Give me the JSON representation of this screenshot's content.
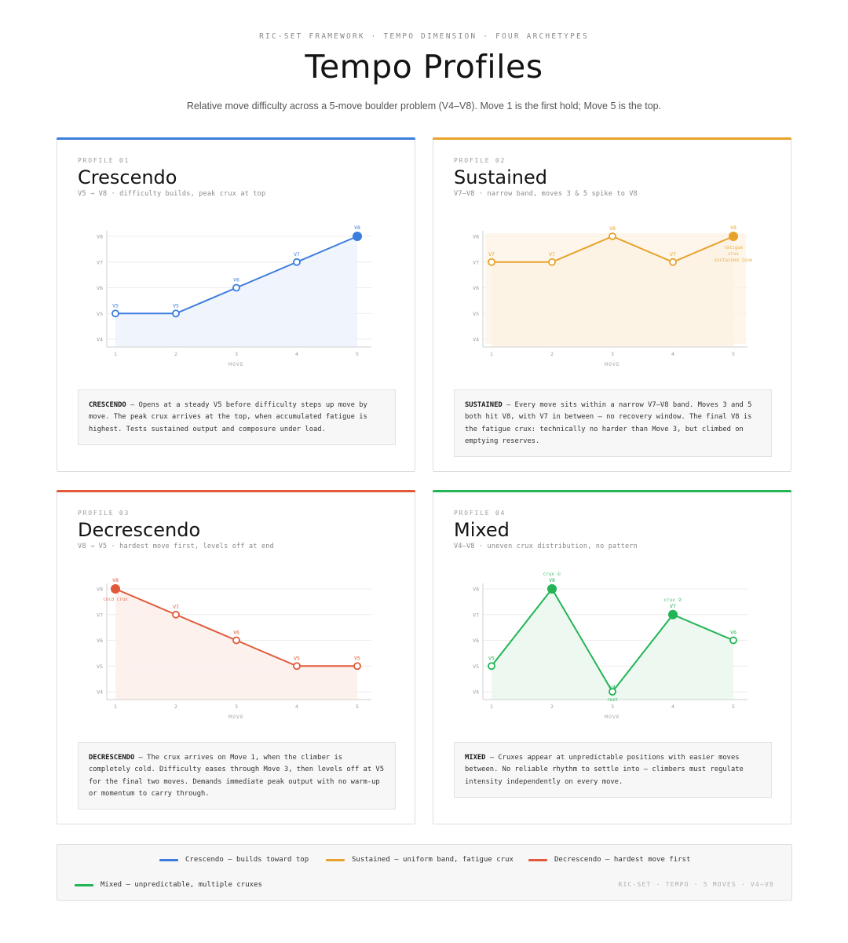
{
  "header": {
    "kicker": "RIC-SET FRAMEWORK · TEMPO DIMENSION · FOUR ARCHETYPES",
    "title": "Tempo Profiles",
    "subtitle": "Relative move difficulty across a 5-move boulder problem (V4–V8). Move 1 is the first hold; Move 5 is the top."
  },
  "chart_axes": {
    "x_title": "MOVE",
    "x_ticks": [
      "1",
      "2",
      "3",
      "4",
      "5"
    ],
    "y_ticks": [
      "V4",
      "V5",
      "V6",
      "V7",
      "V8"
    ],
    "ylim": [
      4,
      8
    ]
  },
  "chart_data": [
    {
      "type": "line",
      "profile_label": "PROFILE 01",
      "name": "Crescendo",
      "descriptor": "V5 → V8 · difficulty builds, peak crux at top",
      "color": "#3b7ddd",
      "fill": "#eef3fc",
      "x": [
        1,
        2,
        3,
        4,
        5
      ],
      "values": [
        5,
        5,
        6,
        7,
        8
      ],
      "point_labels": [
        "V5",
        "V5",
        "V6",
        "V7",
        "V8"
      ],
      "crux": [
        5
      ],
      "annotations": [],
      "band": null,
      "note_lead": "CRESCENDO",
      "note_body": " — Opens at a steady V5 before difficulty steps up move by move. The peak crux arrives at the top, when accumulated fatigue is highest. Tests sustained output and composure under load."
    },
    {
      "type": "line",
      "profile_label": "PROFILE 02",
      "name": "Sustained",
      "descriptor": "V7–V8 · narrow band, moves 3 & 5 spike to V8",
      "color": "#e8a22c",
      "fill": "#fdf3e4",
      "x": [
        1,
        2,
        3,
        4,
        5
      ],
      "values": [
        7,
        7,
        8,
        7,
        8
      ],
      "point_labels": [
        "V7",
        "V7",
        "V8",
        "V7",
        "V8"
      ],
      "crux": [
        5
      ],
      "annotations": [
        {
          "x": 5,
          "lines": [
            "fatigue",
            "crux",
            "sustained zone"
          ]
        }
      ],
      "band": [
        7,
        8
      ],
      "note_lead": "SUSTAINED",
      "note_body": " — Every move sits within a narrow V7–V8 band. Moves 3 and 5 both hit V8, with V7 in between — no recovery window. The final V8 is the fatigue crux: technically no harder than Move 3, but climbed on emptying reserves."
    },
    {
      "type": "line",
      "profile_label": "PROFILE 03",
      "name": "Decrescendo",
      "descriptor": "V8 → V5 · hardest move first, levels off at end",
      "color": "#e05a3a",
      "fill": "#fdf0ec",
      "x": [
        1,
        2,
        3,
        4,
        5
      ],
      "values": [
        8,
        7,
        6,
        5,
        5
      ],
      "point_labels": [
        "V8",
        "V7",
        "V6",
        "V5",
        "V5"
      ],
      "crux": [
        1
      ],
      "annotations": [
        {
          "x": 1,
          "lines": [
            "cold crux"
          ]
        }
      ],
      "band": null,
      "note_lead": "DECRESCENDO",
      "note_body": " — The crux arrives on Move 1, when the climber is completely cold. Difficulty eases through Move 3, then levels off at V5 for the final two moves. Demands immediate peak output with no warm-up or momentum to carry through."
    },
    {
      "type": "line",
      "profile_label": "PROFILE 04",
      "name": "Mixed",
      "descriptor": "V4–V8 · uneven crux distribution, no pattern",
      "color": "#22b455",
      "fill": "#eaf7ee",
      "x": [
        1,
        2,
        3,
        4,
        5
      ],
      "values": [
        5,
        8,
        4,
        7,
        6
      ],
      "point_labels": [
        "V5",
        "V8",
        "V4",
        "V7",
        "V6"
      ],
      "crux": [
        2,
        4
      ],
      "annotations": [
        {
          "x": 2,
          "lines": [
            "crux ①"
          ]
        },
        {
          "x": 4,
          "lines": [
            "crux ②"
          ]
        },
        {
          "x": 3,
          "lines": [
            "rest"
          ]
        }
      ],
      "band": null,
      "note_lead": "MIXED",
      "note_body": " — Cruxes appear at unpredictable positions with easier moves between. No reliable rhythm to settle into — climbers must regulate intensity independently on every move."
    }
  ],
  "legend": {
    "items": [
      {
        "label": "Crescendo — builds toward top",
        "color": "#3b7ddd"
      },
      {
        "label": "Sustained — uniform band, fatigue crux",
        "color": "#e8a22c"
      },
      {
        "label": "Decrescendo — hardest move first",
        "color": "#e05a3a"
      },
      {
        "label": "Mixed — unpredictable, multiple cruxes",
        "color": "#22b455"
      }
    ],
    "footer": "RIC-SET · TEMPO · 5 MOVES · V4–V8"
  }
}
